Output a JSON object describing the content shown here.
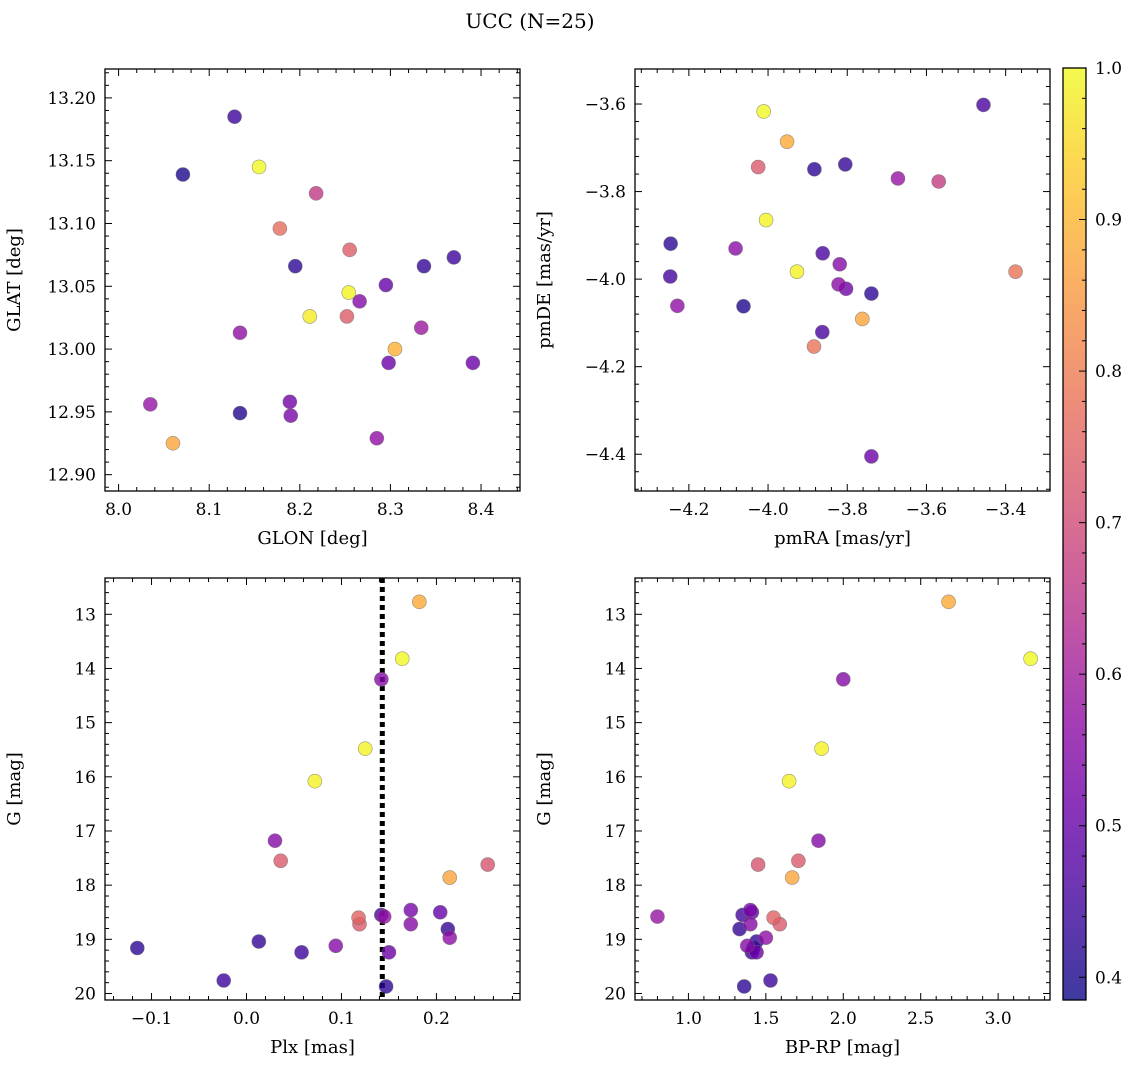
{
  "title": "UCC (N=25)",
  "chart_data": [
    {
      "type": "scatter",
      "xlabel": "GLON [deg]",
      "ylabel": "GLAT [deg]",
      "xlim": [
        7.985,
        8.443
      ],
      "ylim": [
        12.887,
        13.223
      ],
      "y_inverted": false,
      "xticks": [
        8.0,
        8.1,
        8.2,
        8.3,
        8.4
      ],
      "xtick_labels": [
        "8.0",
        "8.1",
        "8.2",
        "8.3",
        "8.4"
      ],
      "yticks": [
        12.9,
        12.95,
        13.0,
        13.05,
        13.1,
        13.15,
        13.2
      ],
      "ytick_labels": [
        "12.90",
        "12.95",
        "13.00",
        "13.05",
        "13.10",
        "13.15",
        "13.20"
      ],
      "points": [
        {
          "x": 8.128,
          "y": 13.185,
          "c": 0.44
        },
        {
          "x": 8.071,
          "y": 13.139,
          "c": 0.4
        },
        {
          "x": 8.155,
          "y": 13.145,
          "c": 1.0
        },
        {
          "x": 8.218,
          "y": 13.124,
          "c": 0.66
        },
        {
          "x": 8.178,
          "y": 13.096,
          "c": 0.77
        },
        {
          "x": 8.255,
          "y": 13.079,
          "c": 0.74
        },
        {
          "x": 8.195,
          "y": 13.066,
          "c": 0.42
        },
        {
          "x": 8.337,
          "y": 13.066,
          "c": 0.43
        },
        {
          "x": 8.37,
          "y": 13.073,
          "c": 0.44
        },
        {
          "x": 8.295,
          "y": 13.051,
          "c": 0.5
        },
        {
          "x": 8.254,
          "y": 13.045,
          "c": 0.99
        },
        {
          "x": 8.266,
          "y": 13.038,
          "c": 0.55
        },
        {
          "x": 8.211,
          "y": 13.026,
          "c": 0.98
        },
        {
          "x": 8.252,
          "y": 13.026,
          "c": 0.74
        },
        {
          "x": 8.134,
          "y": 13.013,
          "c": 0.57
        },
        {
          "x": 8.334,
          "y": 13.017,
          "c": 0.59
        },
        {
          "x": 8.305,
          "y": 13.0,
          "c": 0.89
        },
        {
          "x": 8.298,
          "y": 12.989,
          "c": 0.51
        },
        {
          "x": 8.391,
          "y": 12.989,
          "c": 0.51
        },
        {
          "x": 8.035,
          "y": 12.956,
          "c": 0.58
        },
        {
          "x": 8.189,
          "y": 12.958,
          "c": 0.52
        },
        {
          "x": 8.134,
          "y": 12.949,
          "c": 0.41
        },
        {
          "x": 8.19,
          "y": 12.947,
          "c": 0.53
        },
        {
          "x": 8.285,
          "y": 12.929,
          "c": 0.57
        },
        {
          "x": 8.06,
          "y": 12.925,
          "c": 0.87
        }
      ]
    },
    {
      "type": "scatter",
      "xlabel": "pmRA [mas/yr]",
      "ylabel": "pmDE [mas/yr]",
      "xlim": [
        -4.336,
        -3.288
      ],
      "ylim": [
        -4.484,
        -3.52
      ],
      "y_inverted": false,
      "xticks": [
        -4.2,
        -4.0,
        -3.8,
        -3.6,
        -3.4
      ],
      "xtick_labels": [
        "−4.2",
        "−4.0",
        "−3.8",
        "−3.6",
        "−3.4"
      ],
      "yticks": [
        -4.4,
        -4.2,
        -4.0,
        -3.8,
        -3.6
      ],
      "ytick_labels": [
        "−4.4",
        "−4.2",
        "−4.0",
        "−3.8",
        "−3.6"
      ],
      "points": [
        {
          "x": -4.011,
          "y": -3.617,
          "c": 1.0
        },
        {
          "x": -3.456,
          "y": -3.602,
          "c": 0.46
        },
        {
          "x": -3.952,
          "y": -3.686,
          "c": 0.88
        },
        {
          "x": -4.025,
          "y": -3.744,
          "c": 0.73
        },
        {
          "x": -3.883,
          "y": -3.749,
          "c": 0.42
        },
        {
          "x": -3.805,
          "y": -3.738,
          "c": 0.43
        },
        {
          "x": -3.672,
          "y": -3.77,
          "c": 0.58
        },
        {
          "x": -3.569,
          "y": -3.777,
          "c": 0.67
        },
        {
          "x": -4.005,
          "y": -3.865,
          "c": 0.99
        },
        {
          "x": -4.246,
          "y": -3.919,
          "c": 0.42
        },
        {
          "x": -4.082,
          "y": -3.93,
          "c": 0.56
        },
        {
          "x": -3.862,
          "y": -3.941,
          "c": 0.46
        },
        {
          "x": -3.927,
          "y": -3.983,
          "c": 0.99
        },
        {
          "x": -3.819,
          "y": -3.966,
          "c": 0.55
        },
        {
          "x": -4.247,
          "y": -3.994,
          "c": 0.45
        },
        {
          "x": -3.375,
          "y": -3.983,
          "c": 0.78
        },
        {
          "x": -3.822,
          "y": -4.012,
          "c": 0.56
        },
        {
          "x": -3.803,
          "y": -4.022,
          "c": 0.52
        },
        {
          "x": -3.739,
          "y": -4.033,
          "c": 0.42
        },
        {
          "x": -4.229,
          "y": -4.061,
          "c": 0.57
        },
        {
          "x": -4.062,
          "y": -4.062,
          "c": 0.41
        },
        {
          "x": -3.863,
          "y": -4.121,
          "c": 0.46
        },
        {
          "x": -3.762,
          "y": -4.091,
          "c": 0.87
        },
        {
          "x": -3.884,
          "y": -4.154,
          "c": 0.78
        },
        {
          "x": -3.739,
          "y": -4.405,
          "c": 0.51
        }
      ]
    },
    {
      "type": "scatter",
      "xlabel": "Plx [mas]",
      "ylabel": "G [mag]",
      "xlim": [
        -0.149,
        0.288
      ],
      "ylim": [
        20.12,
        12.33
      ],
      "y_inverted": true,
      "vline": {
        "x": 0.143,
        "style": "dotted"
      },
      "xticks": [
        -0.1,
        0.0,
        0.1,
        0.2
      ],
      "xtick_labels": [
        "−0.1",
        "0.0",
        "0.1",
        "0.2"
      ],
      "yticks": [
        13,
        14,
        15,
        16,
        17,
        18,
        19,
        20
      ],
      "ytick_labels": [
        "13",
        "14",
        "15",
        "16",
        "17",
        "18",
        "19",
        "20"
      ],
      "points": [
        {
          "x": 0.182,
          "y": 12.77,
          "c": 0.88
        },
        {
          "x": 0.164,
          "y": 13.82,
          "c": 1.0
        },
        {
          "x": 0.142,
          "y": 14.2,
          "c": 0.55
        },
        {
          "x": 0.125,
          "y": 15.48,
          "c": 0.99
        },
        {
          "x": 0.072,
          "y": 16.08,
          "c": 0.99
        },
        {
          "x": 0.03,
          "y": 17.18,
          "c": 0.55
        },
        {
          "x": 0.036,
          "y": 17.55,
          "c": 0.73
        },
        {
          "x": 0.254,
          "y": 17.62,
          "c": 0.72
        },
        {
          "x": 0.214,
          "y": 17.86,
          "c": 0.87
        },
        {
          "x": 0.173,
          "y": 18.46,
          "c": 0.53
        },
        {
          "x": 0.204,
          "y": 18.5,
          "c": 0.5
        },
        {
          "x": 0.142,
          "y": 18.55,
          "c": 0.45
        },
        {
          "x": 0.145,
          "y": 18.58,
          "c": 0.58
        },
        {
          "x": 0.118,
          "y": 18.6,
          "c": 0.75
        },
        {
          "x": 0.119,
          "y": 18.72,
          "c": 0.73
        },
        {
          "x": 0.173,
          "y": 18.72,
          "c": 0.55
        },
        {
          "x": 0.212,
          "y": 18.81,
          "c": 0.43
        },
        {
          "x": 0.214,
          "y": 18.97,
          "c": 0.57
        },
        {
          "x": 0.013,
          "y": 19.04,
          "c": 0.43
        },
        {
          "x": -0.115,
          "y": 19.16,
          "c": 0.42
        },
        {
          "x": 0.094,
          "y": 19.12,
          "c": 0.55
        },
        {
          "x": 0.058,
          "y": 19.24,
          "c": 0.44
        },
        {
          "x": 0.15,
          "y": 19.24,
          "c": 0.51
        },
        {
          "x": -0.024,
          "y": 19.76,
          "c": 0.44
        },
        {
          "x": 0.147,
          "y": 19.87,
          "c": 0.42
        }
      ]
    },
    {
      "type": "scatter",
      "xlabel": "BP-RP [mag]",
      "ylabel": "G [mag]",
      "xlim": [
        0.655,
        3.335
      ],
      "ylim": [
        20.12,
        12.33
      ],
      "y_inverted": true,
      "xticks": [
        1.0,
        1.5,
        2.0,
        2.5,
        3.0
      ],
      "xtick_labels": [
        "1.0",
        "1.5",
        "2.0",
        "2.5",
        "3.0"
      ],
      "yticks": [
        13,
        14,
        15,
        16,
        17,
        18,
        19,
        20
      ],
      "ytick_labels": [
        "13",
        "14",
        "15",
        "16",
        "17",
        "18",
        "19",
        "20"
      ],
      "points": [
        {
          "x": 2.68,
          "y": 12.77,
          "c": 0.88
        },
        {
          "x": 3.21,
          "y": 13.82,
          "c": 1.0
        },
        {
          "x": 2.0,
          "y": 14.2,
          "c": 0.55
        },
        {
          "x": 1.86,
          "y": 15.48,
          "c": 0.99
        },
        {
          "x": 1.65,
          "y": 16.08,
          "c": 0.99
        },
        {
          "x": 1.84,
          "y": 17.18,
          "c": 0.55
        },
        {
          "x": 1.71,
          "y": 17.55,
          "c": 0.73
        },
        {
          "x": 1.45,
          "y": 17.62,
          "c": 0.72
        },
        {
          "x": 1.67,
          "y": 17.86,
          "c": 0.87
        },
        {
          "x": 1.4,
          "y": 18.46,
          "c": 0.53
        },
        {
          "x": 1.41,
          "y": 18.5,
          "c": 0.5
        },
        {
          "x": 1.35,
          "y": 18.55,
          "c": 0.45
        },
        {
          "x": 0.8,
          "y": 18.58,
          "c": 0.58
        },
        {
          "x": 1.55,
          "y": 18.6,
          "c": 0.75
        },
        {
          "x": 1.59,
          "y": 18.72,
          "c": 0.73
        },
        {
          "x": 1.4,
          "y": 18.72,
          "c": 0.55
        },
        {
          "x": 1.33,
          "y": 18.81,
          "c": 0.43
        },
        {
          "x": 1.5,
          "y": 18.97,
          "c": 0.57
        },
        {
          "x": 1.44,
          "y": 19.04,
          "c": 0.43
        },
        {
          "x": 1.42,
          "y": 19.16,
          "c": 0.42
        },
        {
          "x": 1.38,
          "y": 19.12,
          "c": 0.55
        },
        {
          "x": 1.41,
          "y": 19.24,
          "c": 0.44
        },
        {
          "x": 1.44,
          "y": 19.24,
          "c": 0.51
        },
        {
          "x": 1.53,
          "y": 19.76,
          "c": 0.44
        },
        {
          "x": 1.36,
          "y": 19.87,
          "c": 0.42
        }
      ]
    }
  ],
  "colorbar": {
    "colormap": "plasma",
    "vmin": 0.385,
    "vmax": 1.0,
    "ticks": [
      0.4,
      0.5,
      0.6,
      0.7,
      0.8,
      0.9,
      1.0
    ],
    "tick_labels": [
      "0.4",
      "0.5",
      "0.6",
      "0.7",
      "0.8",
      "0.9",
      "1.0"
    ],
    "colors": [
      "#0d0887",
      "#41049d",
      "#6a00a8",
      "#8f0da4",
      "#b12a90",
      "#cc4778",
      "#e16462",
      "#f2844b",
      "#fca636",
      "#fcce25",
      "#f0f921"
    ],
    "alpha": 0.8,
    "marker_edge_color": "#6e6e6e"
  }
}
